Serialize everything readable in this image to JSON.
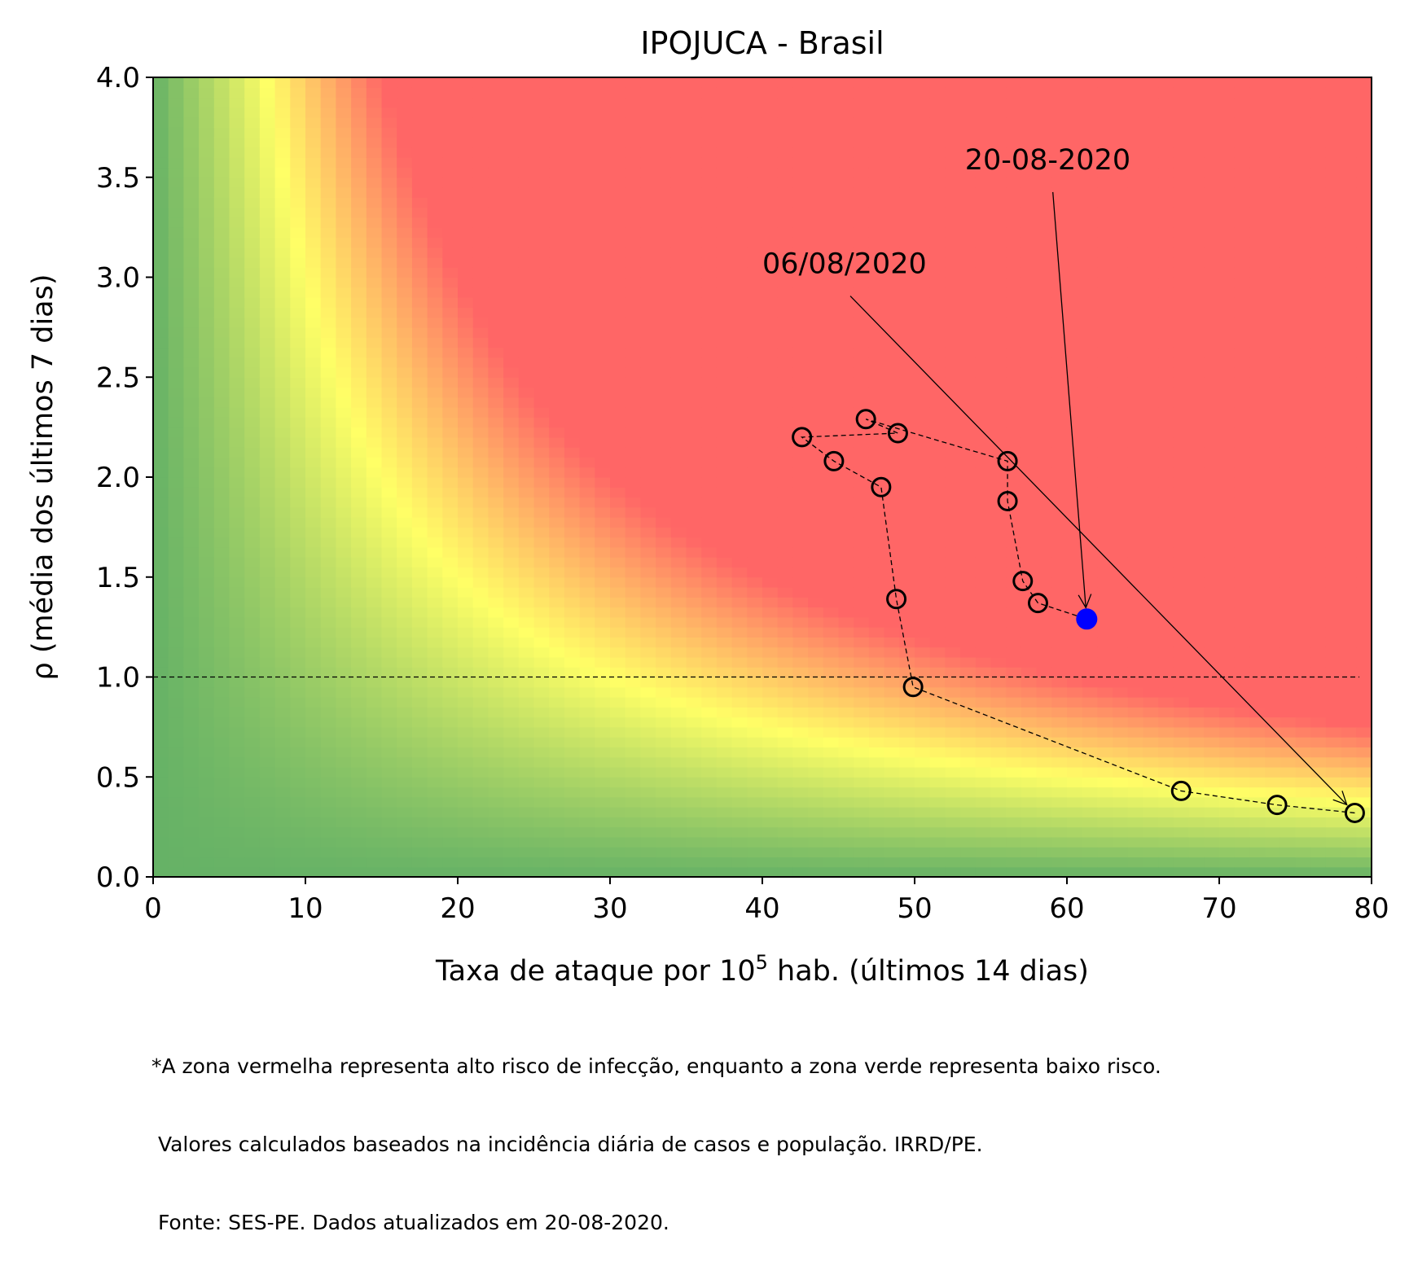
{
  "chart_data": {
    "type": "scatter",
    "title": "IPOJUCA - Brasil",
    "xlabel_prefix": "Taxa de ataque por 10",
    "xlabel_sup": "5",
    "xlabel_suffix": " hab. (últimos 14 dias)",
    "ylabel": "ρ (média dos últimos 7 dias)",
    "xlim": [
      0,
      80
    ],
    "ylim": [
      0,
      4
    ],
    "xticks": [
      0,
      10,
      20,
      30,
      40,
      50,
      60,
      70,
      80
    ],
    "xtick_labels": [
      "0",
      "10",
      "20",
      "30",
      "40",
      "50",
      "60",
      "70",
      "80"
    ],
    "yticks": [
      0,
      0.5,
      1,
      1.5,
      2,
      2.5,
      3,
      3.5,
      4
    ],
    "ytick_labels": [
      "0.0",
      "0.5",
      "1.0",
      "1.5",
      "2.0",
      "2.5",
      "3.0",
      "3.5",
      "4.0"
    ],
    "reference_line_y": 1.0,
    "background": "risk gradient heatmap: green (low) → yellow → red (high)",
    "colors": {
      "green": "#66b266",
      "yellow": "#ffff66",
      "red": "#ff6666",
      "current_point": "#0000ff"
    },
    "series": [
      {
        "points": [
          {
            "x": 78.9,
            "y": 0.32
          },
          {
            "x": 73.8,
            "y": 0.36
          },
          {
            "x": 67.5,
            "y": 0.43
          },
          {
            "x": 49.9,
            "y": 0.95
          },
          {
            "x": 48.8,
            "y": 1.39
          },
          {
            "x": 47.8,
            "y": 1.95
          },
          {
            "x": 44.7,
            "y": 2.08
          },
          {
            "x": 42.6,
            "y": 2.2
          },
          {
            "x": 48.9,
            "y": 2.22
          },
          {
            "x": 46.8,
            "y": 2.29
          },
          {
            "x": 56.1,
            "y": 2.08
          },
          {
            "x": 56.1,
            "y": 1.88
          },
          {
            "x": 57.1,
            "y": 1.48
          },
          {
            "x": 58.1,
            "y": 1.37
          },
          {
            "x": 61.3,
            "y": 1.29
          }
        ]
      }
    ],
    "annotations": [
      {
        "text": "06/08/2020",
        "text_x": 40.0,
        "text_y": 3.02,
        "target_x": 78.9,
        "target_y": 0.32
      },
      {
        "text": "20-08-2020",
        "text_x": 53.3,
        "text_y": 3.54,
        "target_x": 61.3,
        "target_y": 1.29
      }
    ]
  },
  "footnote": {
    "line1": "*A zona vermelha representa alto risco de infecção, enquanto a zona verde representa baixo risco.",
    "line2": " Valores calculados baseados na incidência diária de casos e população. IRRD/PE.",
    "line3": " Fonte: SES-PE. Dados atualizados em 20-08-2020."
  }
}
